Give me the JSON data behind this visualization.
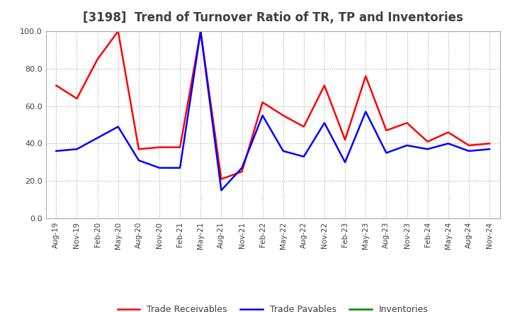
{
  "title": "[3198]  Trend of Turnover Ratio of TR, TP and Inventories",
  "xlabels": [
    "Aug-19",
    "Nov-19",
    "Feb-20",
    "May-20",
    "Aug-20",
    "Nov-20",
    "Feb-21",
    "May-21",
    "Aug-21",
    "Nov-21",
    "Feb-22",
    "May-22",
    "Aug-22",
    "Nov-22",
    "Feb-23",
    "May-23",
    "Aug-23",
    "Nov-23",
    "Feb-24",
    "May-24",
    "Aug-24",
    "Nov-24"
  ],
  "trade_receivables": [
    71.0,
    64.0,
    85.0,
    100.0,
    37.0,
    38.0,
    38.0,
    100.0,
    21.0,
    25.0,
    62.0,
    55.0,
    49.0,
    71.0,
    42.0,
    76.0,
    47.0,
    51.0,
    41.0,
    46.0,
    39.0,
    40.0
  ],
  "trade_payables": [
    36.0,
    37.0,
    43.0,
    49.0,
    31.0,
    27.0,
    27.0,
    100.0,
    15.0,
    27.0,
    55.0,
    36.0,
    33.0,
    51.0,
    30.0,
    57.0,
    35.0,
    39.0,
    37.0,
    40.0,
    36.0,
    37.0
  ],
  "inventories": [
    null,
    null,
    null,
    null,
    null,
    null,
    null,
    null,
    null,
    null,
    null,
    null,
    null,
    null,
    null,
    null,
    null,
    null,
    null,
    null,
    null,
    null
  ],
  "ylim": [
    0.0,
    100.0
  ],
  "yticks": [
    0.0,
    20.0,
    40.0,
    60.0,
    80.0,
    100.0
  ],
  "tr_color": "#FF0000",
  "tp_color": "#0000FF",
  "inv_color": "#008000",
  "bg_color": "#FFFFFF",
  "grid_color": "#AAAAAA",
  "title_fontsize": 12,
  "title_color": "#404040",
  "tick_label_color": "#404040",
  "legend_labels": [
    "Trade Receivables",
    "Trade Payables",
    "Inventories"
  ]
}
